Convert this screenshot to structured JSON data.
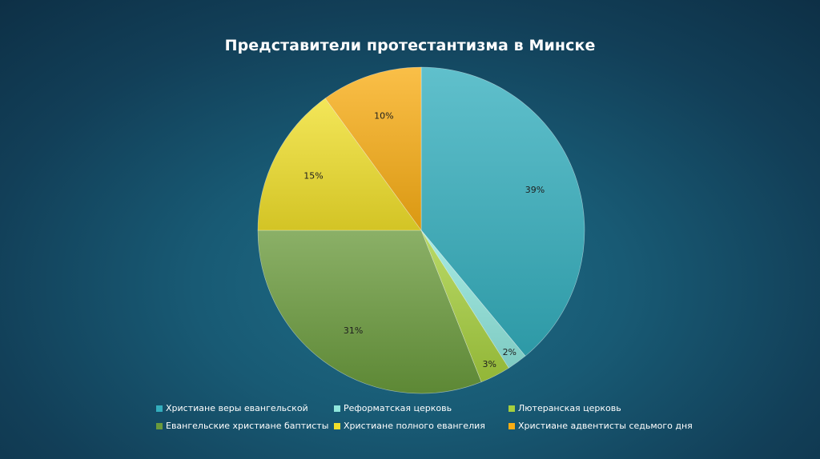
{
  "chart_data": {
    "type": "pie",
    "title": "Представители протестантизма в Минске",
    "start_angle_deg": 0,
    "direction": "clockwise",
    "legend_position": "bottom",
    "slices": [
      {
        "name": "Христиане веры евангельской",
        "value": 39,
        "label": "39%",
        "color": "#33aebd"
      },
      {
        "name": "Реформатская церковь",
        "value": 2,
        "label": "2%",
        "color": "#8fe6dc"
      },
      {
        "name": "Лютеранская церковь",
        "value": 3,
        "label": "3%",
        "color": "#a6cf3e"
      },
      {
        "name": "Евангельские христиане баптисты",
        "value": 31,
        "label": "31%",
        "color": "#6a9a3c"
      },
      {
        "name": "Христиане полного евангелия",
        "value": 15,
        "label": "15%",
        "color": "#f0df2a"
      },
      {
        "name": "Христиане адвентисты седьмого дня",
        "value": 10,
        "label": "10%",
        "color": "#f8ad14"
      }
    ]
  }
}
